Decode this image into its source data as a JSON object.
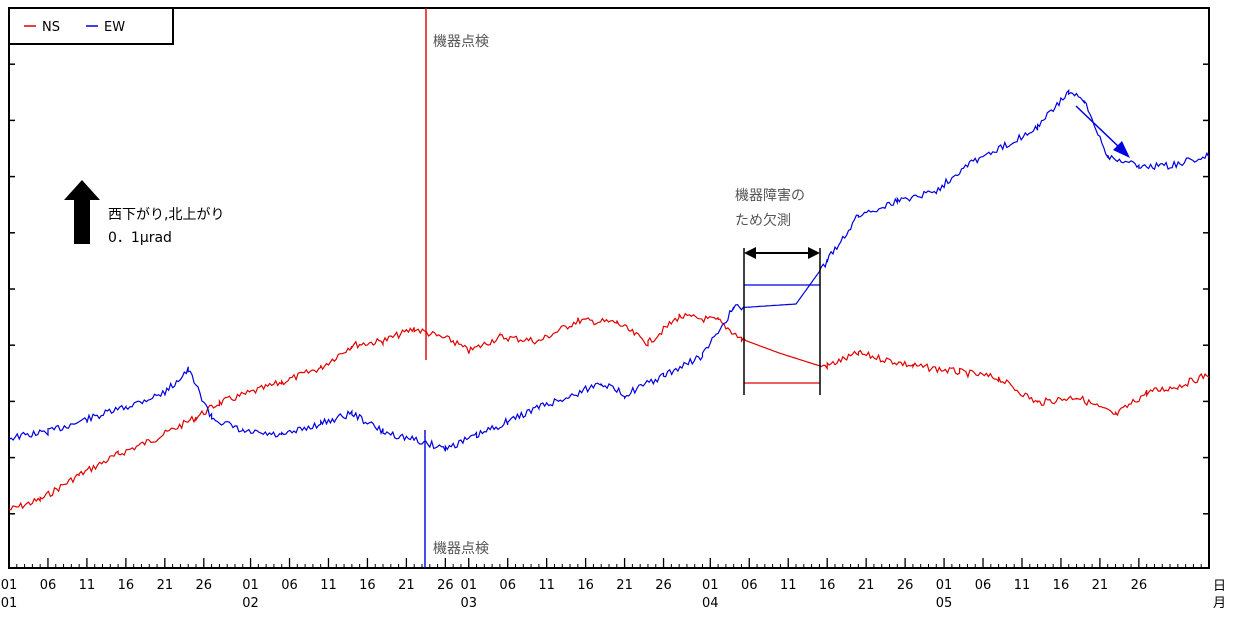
{
  "chart_data": {
    "type": "line",
    "title": "",
    "xlabel": "",
    "ylabel": "",
    "x_unit_labels": [
      "日",
      "月"
    ],
    "legend": {
      "placement": "top-left",
      "entries": [
        "NS",
        "EW"
      ]
    },
    "grid": false,
    "x_range": [
      "01/01",
      "05/31"
    ],
    "series": [
      {
        "name": "NS",
        "color": "#e00000",
        "points": [
          {
            "x": "01/01",
            "y": 0.0
          },
          {
            "x": "01/05",
            "y": 0.05
          },
          {
            "x": "01/10",
            "y": 0.17
          },
          {
            "x": "01/15",
            "y": 0.27
          },
          {
            "x": "01/20",
            "y": 0.35
          },
          {
            "x": "01/25",
            "y": 0.45
          },
          {
            "x": "01/28",
            "y": 0.52
          },
          {
            "x": "02/05",
            "y": 0.62
          },
          {
            "x": "02/10",
            "y": 0.69
          },
          {
            "x": "02/14",
            "y": 0.8
          },
          {
            "x": "02/18",
            "y": 0.82
          },
          {
            "x": "02/22",
            "y": 0.88
          },
          {
            "x": "02/27",
            "y": 0.82
          },
          {
            "x": "03/01",
            "y": 0.77
          },
          {
            "x": "03/05",
            "y": 0.84
          },
          {
            "x": "03/10",
            "y": 0.82
          },
          {
            "x": "03/15",
            "y": 0.92
          },
          {
            "x": "03/20",
            "y": 0.91
          },
          {
            "x": "03/24",
            "y": 0.81
          },
          {
            "x": "03/28",
            "y": 0.94
          },
          {
            "x": "04/02",
            "y": 0.92
          },
          {
            "x": "04/05",
            "y": 0.83
          },
          {
            "x": "04/10",
            "y": 0.76
          },
          {
            "x": "04/15",
            "y": 0.7
          },
          {
            "x": "04/16",
            "y": 0.7
          },
          {
            "x": "04/20",
            "y": 0.76
          },
          {
            "x": "04/27",
            "y": 0.7
          },
          {
            "x": "05/03",
            "y": 0.67
          },
          {
            "x": "05/08",
            "y": 0.64
          },
          {
            "x": "05/13",
            "y": 0.52
          },
          {
            "x": "05/18",
            "y": 0.55
          },
          {
            "x": "05/23",
            "y": 0.46
          },
          {
            "x": "05/27",
            "y": 0.57
          },
          {
            "x": "05/31",
            "y": 0.6
          },
          {
            "x": "06/04",
            "y": 0.66
          }
        ]
      },
      {
        "name": "EW",
        "color": "#0000e0",
        "points": [
          {
            "x": "01/01",
            "y": 0.35
          },
          {
            "x": "01/06",
            "y": 0.38
          },
          {
            "x": "01/11",
            "y": 0.44
          },
          {
            "x": "01/16",
            "y": 0.5
          },
          {
            "x": "01/21",
            "y": 0.57
          },
          {
            "x": "01/24",
            "y": 0.68
          },
          {
            "x": "01/27",
            "y": 0.45
          },
          {
            "x": "01/31",
            "y": 0.38
          },
          {
            "x": "02/05",
            "y": 0.36
          },
          {
            "x": "02/10",
            "y": 0.42
          },
          {
            "x": "02/14",
            "y": 0.47
          },
          {
            "x": "02/18",
            "y": 0.38
          },
          {
            "x": "02/22",
            "y": 0.34
          },
          {
            "x": "02/26",
            "y": 0.3
          },
          {
            "x": "03/02",
            "y": 0.36
          },
          {
            "x": "03/06",
            "y": 0.43
          },
          {
            "x": "03/10",
            "y": 0.5
          },
          {
            "x": "03/14",
            "y": 0.55
          },
          {
            "x": "03/18",
            "y": 0.62
          },
          {
            "x": "03/21",
            "y": 0.56
          },
          {
            "x": "03/26",
            "y": 0.65
          },
          {
            "x": "03/31",
            "y": 0.75
          },
          {
            "x": "04/04",
            "y": 0.98
          },
          {
            "x": "04/08",
            "y": 0.99
          },
          {
            "x": "04/12",
            "y": 1.0
          },
          {
            "x": "04/16",
            "y": 1.21
          },
          {
            "x": "04/20",
            "y": 1.43
          },
          {
            "x": "04/25",
            "y": 1.5
          },
          {
            "x": "04/30",
            "y": 1.55
          },
          {
            "x": "05/04",
            "y": 1.68
          },
          {
            "x": "05/08",
            "y": 1.75
          },
          {
            "x": "05/13",
            "y": 1.86
          },
          {
            "x": "05/17",
            "y": 2.03
          },
          {
            "x": "05/19",
            "y": 1.98
          },
          {
            "x": "05/22",
            "y": 1.72
          },
          {
            "x": "05/26",
            "y": 1.67
          },
          {
            "x": "05/30",
            "y": 1.67
          },
          {
            "x": "06/04",
            "y": 1.72
          }
        ]
      }
    ],
    "scale_bar": {
      "line1": "西下がり,北上がり",
      "line2": "0．1μrad",
      "value_urad": 0.1
    },
    "annotations": [
      {
        "text": "機器点検"
      },
      {
        "text": "機器点検"
      },
      {
        "lines": [
          "機器障害の",
          "ため欠測"
        ]
      }
    ],
    "x_ticks_day": [
      "01",
      "06",
      "11",
      "16",
      "21",
      "26",
      "01",
      "06",
      "11",
      "16",
      "21",
      "26",
      "01",
      "06",
      "11",
      "16",
      "21",
      "26",
      "01",
      "06",
      "11",
      "16",
      "21",
      "26",
      "01",
      "06",
      "11",
      "16",
      "21",
      "26"
    ],
    "x_ticks_month": [
      "01",
      "02",
      "03",
      "04",
      "05"
    ]
  }
}
